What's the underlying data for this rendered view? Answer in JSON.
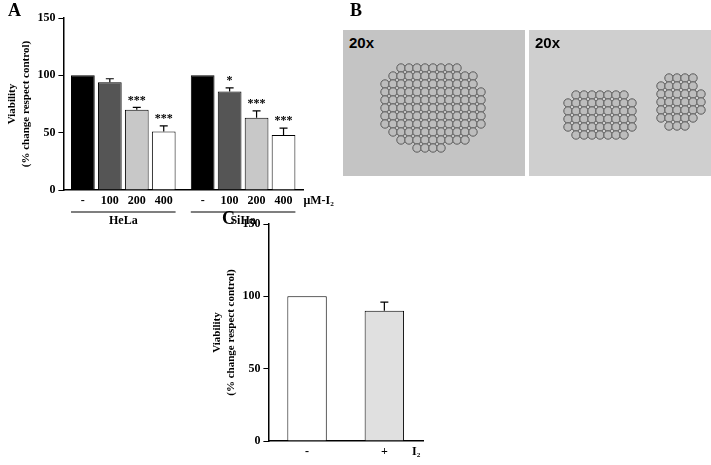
{
  "chart_data": [
    {
      "panel": "A",
      "type": "bar",
      "categories": [
        "HeLa",
        "SiHa"
      ],
      "x_label": "μM-I₂",
      "y_label": [
        "Viability",
        "(% change respect control)"
      ],
      "series": [
        {
          "name": "-",
          "color": "#000000",
          "values": [
            100,
            100
          ],
          "errors": [
            0,
            0
          ],
          "significance": [
            null,
            null
          ]
        },
        {
          "name": "100",
          "color": "#555555",
          "values": [
            94,
            86
          ],
          "errors": [
            3,
            3
          ],
          "significance": [
            null,
            "*"
          ]
        },
        {
          "name": "200",
          "color": "#c8c8c8",
          "values": [
            70,
            63
          ],
          "errors": [
            2,
            6
          ],
          "significance": [
            "***",
            "***"
          ]
        },
        {
          "name": "400",
          "color": "#ffffff",
          "values": [
            51,
            48
          ],
          "errors": [
            5,
            6
          ],
          "significance": [
            "***",
            "***"
          ]
        }
      ],
      "ylim": [
        0,
        150
      ],
      "yticks": [
        0,
        50,
        100,
        150
      ],
      "grid": false
    },
    {
      "panel": "C",
      "type": "bar",
      "categories": [
        "-",
        "+"
      ],
      "x_label": "I₂",
      "y_label": [
        "Viability",
        "(% change respect control)"
      ],
      "values": [
        100,
        90
      ],
      "errors": [
        0,
        6
      ],
      "colors": [
        "#ffffff",
        "#e0e0e0"
      ],
      "ylim": [
        0,
        150
      ],
      "yticks": [
        0,
        50,
        100,
        150
      ],
      "grid": false
    }
  ],
  "image_panel": {
    "panel": "B",
    "labels": [
      "20x",
      "20x"
    ]
  }
}
